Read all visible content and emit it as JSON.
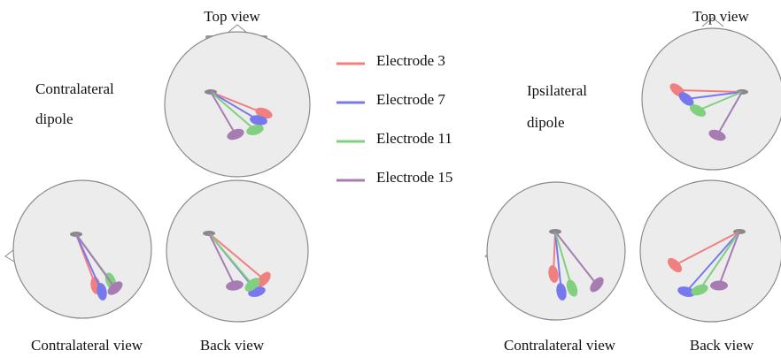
{
  "panels": [
    {
      "dipole_label": [
        "Contralateral",
        "dipole"
      ],
      "top_view": "Top view",
      "side_view": "Contralateral view",
      "back_view": "Back view"
    },
    {
      "dipole_label": [
        "Ipsilateral",
        "dipole"
      ],
      "top_view": "Top view",
      "side_view": "Contralateral view",
      "back_view": "Back view"
    }
  ],
  "legend": [
    {
      "name": "Electrode 3",
      "color": "#f08080"
    },
    {
      "name": "Electrode 7",
      "color": "#7878ee"
    },
    {
      "name": "Electrode 11",
      "color": "#80d080"
    },
    {
      "name": "Electrode 15",
      "color": "#a67cb3"
    }
  ]
}
